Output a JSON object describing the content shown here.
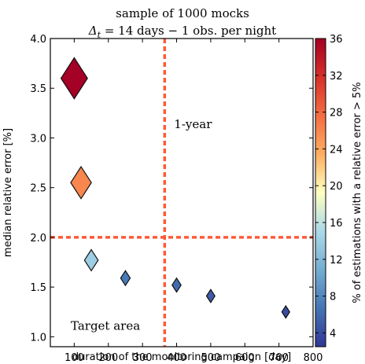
{
  "chart_data": {
    "type": "scatter",
    "title_line1": "sample of 1000 mocks",
    "title_line2_delta": "Δ",
    "title_line2_sub": "t",
    "title_line2_rest": " = 14 days  −  1 obs. per night",
    "xlabel": "duration of the monitoring campaign [day]",
    "ylabel": "median relative error [%]",
    "colorbar_label": "% of estimations with a relative error > 5%",
    "xlim": [
      30,
      800
    ],
    "ylim": [
      0.9,
      4.0
    ],
    "xticks": [
      100,
      200,
      300,
      400,
      500,
      600,
      700,
      800
    ],
    "yticks": [
      1.0,
      1.5,
      2.0,
      2.5,
      3.0,
      3.5,
      4.0
    ],
    "ytick_labels": [
      "1.0",
      "1.5",
      "2.0",
      "2.5",
      "3.0",
      "3.5",
      "4.0"
    ],
    "colorbar_range": [
      2.5,
      36
    ],
    "colorbar_ticks": [
      4,
      8,
      12,
      16,
      20,
      24,
      28,
      32,
      36
    ],
    "vline_x": 365,
    "hline_y": 2.0,
    "line_color": "#ff5a36",
    "annotation_one_year": "1-year",
    "annotation_target": "Target area",
    "points": [
      {
        "x": 100,
        "y": 3.6,
        "pct": 36
      },
      {
        "x": 120,
        "y": 2.55,
        "pct": 26
      },
      {
        "x": 150,
        "y": 1.77,
        "pct": 14
      },
      {
        "x": 250,
        "y": 1.59,
        "pct": 7
      },
      {
        "x": 400,
        "y": 1.52,
        "pct": 6
      },
      {
        "x": 500,
        "y": 1.41,
        "pct": 5
      },
      {
        "x": 720,
        "y": 1.25,
        "pct": 4
      }
    ]
  }
}
